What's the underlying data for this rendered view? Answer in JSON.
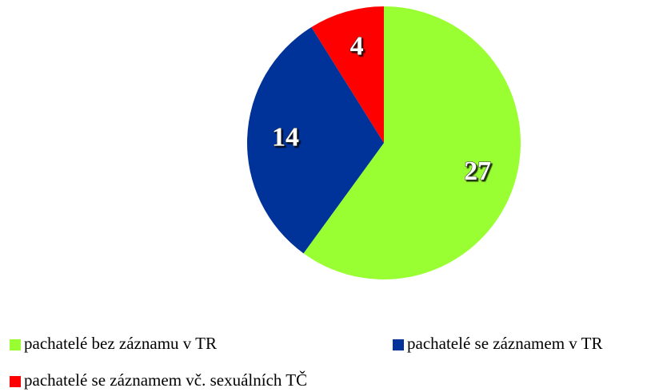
{
  "chart_data": {
    "type": "pie",
    "categories": [
      "pachatelé bez záznamu v TR",
      "pachatelé se záznamem v TR",
      "pachatelé se záznamem vč. sexuálních TČ"
    ],
    "values": [
      27,
      14,
      4
    ],
    "colors": [
      "#99ff33",
      "#003399",
      "#ff0000"
    ],
    "legend": "bottom"
  }
}
